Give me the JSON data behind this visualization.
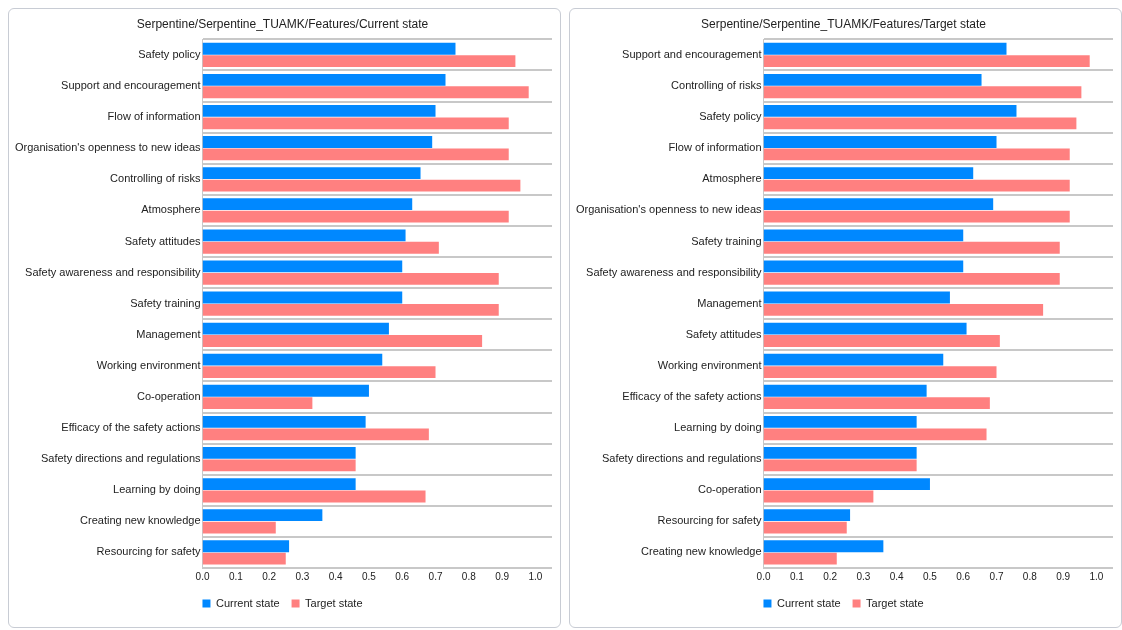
{
  "chart_data": [
    {
      "type": "bar",
      "orientation": "horizontal",
      "title": "Serpentine/Serpentine_TUAMK/Features/Current state",
      "categories": [
        "Safety policy",
        "Support and encouragement",
        "Flow of information",
        "Organisation's openness to new ideas",
        "Controlling of risks",
        "Atmosphere",
        "Safety attitudes",
        "Safety awareness and responsibility",
        "Safety training",
        "Management",
        "Working environment",
        "Co-operation",
        "Efficacy of the safety actions",
        "Safety directions and regulations",
        "Learning by doing",
        "Creating new knowledge",
        "Resourcing for safety"
      ],
      "series": [
        {
          "name": "Current state",
          "color": "#0088ff",
          "values": [
            0.76,
            0.73,
            0.7,
            0.69,
            0.655,
            0.63,
            0.61,
            0.6,
            0.6,
            0.56,
            0.54,
            0.5,
            0.49,
            0.46,
            0.46,
            0.36,
            0.26
          ]
        },
        {
          "name": "Target state",
          "color": "#ff8080",
          "values": [
            0.94,
            0.98,
            0.92,
            0.92,
            0.955,
            0.92,
            0.71,
            0.89,
            0.89,
            0.84,
            0.7,
            0.33,
            0.68,
            0.46,
            0.67,
            0.22,
            0.25
          ]
        }
      ],
      "xlim": [
        0,
        1.05
      ],
      "xticks": [
        {
          "value": 0,
          "label": "0.0"
        },
        {
          "value": 0.1,
          "label": "0.1"
        },
        {
          "value": 0.2,
          "label": "0.2"
        },
        {
          "value": 0.3,
          "label": "0.3"
        },
        {
          "value": 0.4,
          "label": "0.4"
        },
        {
          "value": 0.5,
          "label": "0.5"
        },
        {
          "value": 0.6,
          "label": "0.6"
        },
        {
          "value": 0.7,
          "label": "0.7"
        },
        {
          "value": 0.8,
          "label": "0.8"
        },
        {
          "value": 0.9,
          "label": "0.9"
        },
        {
          "value": 1,
          "label": "1.0"
        }
      ],
      "grid": "y",
      "legend": "bottom"
    },
    {
      "type": "bar",
      "orientation": "horizontal",
      "title": "Serpentine/Serpentine_TUAMK/Features/Target state",
      "categories": [
        "Support and encouragement",
        "Controlling of risks",
        "Safety policy",
        "Flow of information",
        "Atmosphere",
        "Organisation's openness to new ideas",
        "Safety training",
        "Safety awareness and responsibility",
        "Management",
        "Safety attitudes",
        "Working environment",
        "Efficacy of the safety actions",
        "Learning by doing",
        "Safety directions and regulations",
        "Co-operation",
        "Resourcing for safety",
        "Creating new knowledge"
      ],
      "series": [
        {
          "name": "Current state",
          "color": "#0088ff",
          "values": [
            0.73,
            0.655,
            0.76,
            0.7,
            0.63,
            0.69,
            0.6,
            0.6,
            0.56,
            0.61,
            0.54,
            0.49,
            0.46,
            0.46,
            0.5,
            0.26,
            0.36
          ]
        },
        {
          "name": "Target state",
          "color": "#ff8080",
          "values": [
            0.98,
            0.955,
            0.94,
            0.92,
            0.92,
            0.92,
            0.89,
            0.89,
            0.84,
            0.71,
            0.7,
            0.68,
            0.67,
            0.46,
            0.33,
            0.25,
            0.22
          ]
        }
      ],
      "xlim": [
        0,
        1.05
      ],
      "xticks": [
        {
          "value": 0,
          "label": "0.0"
        },
        {
          "value": 0.1,
          "label": "0.1"
        },
        {
          "value": 0.2,
          "label": "0.2"
        },
        {
          "value": 0.3,
          "label": "0.3"
        },
        {
          "value": 0.4,
          "label": "0.4"
        },
        {
          "value": 0.5,
          "label": "0.5"
        },
        {
          "value": 0.6,
          "label": "0.6"
        },
        {
          "value": 0.7,
          "label": "0.7"
        },
        {
          "value": 0.8,
          "label": "0.8"
        },
        {
          "value": 0.9,
          "label": "0.9"
        },
        {
          "value": 1,
          "label": "1.0"
        }
      ],
      "grid": "y",
      "legend": "bottom"
    }
  ]
}
